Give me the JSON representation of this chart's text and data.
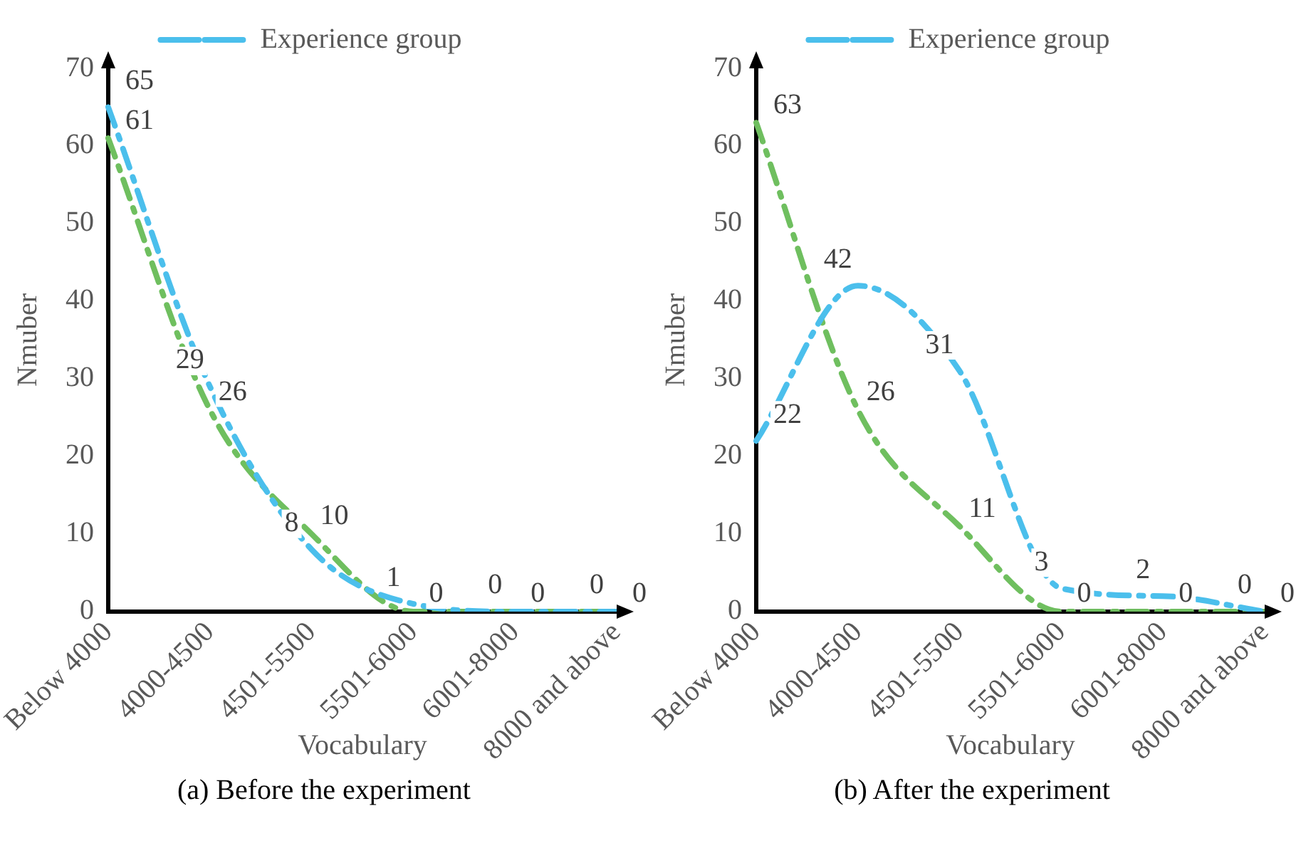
{
  "chart_data": [
    {
      "type": "line",
      "title": "(a) Before the experiment",
      "xlabel": "Vocabulary",
      "ylabel": "Nmuber",
      "categories": [
        "Below 4000",
        "4000-4500",
        "4501-5500",
        "5501-6000",
        "6001-8000",
        "8000 and above"
      ],
      "ylim": [
        0,
        70
      ],
      "yticks": [
        0,
        10,
        20,
        30,
        40,
        50,
        60,
        70
      ],
      "grid": false,
      "legend": "top",
      "data_labels": true,
      "marker": "none",
      "series": [
        {
          "name": "Experience group",
          "color": "#4bbfec",
          "line_style": "dashed",
          "values": [
            65,
            29,
            8,
            1,
            0,
            0
          ]
        },
        {
          "color": "#6fbf5f",
          "line_style": "dashed",
          "values": [
            61,
            26,
            10,
            0,
            0,
            0
          ]
        }
      ]
    },
    {
      "type": "line",
      "title": "(b) After the experiment",
      "xlabel": "Vocabulary",
      "ylabel": "Nmuber",
      "categories": [
        "Below 4000",
        "4000-4500",
        "4501-5500",
        "5501-6000",
        "6001-8000",
        "8000 and above"
      ],
      "ylim": [
        0,
        70
      ],
      "yticks": [
        0,
        10,
        20,
        30,
        40,
        50,
        60,
        70
      ],
      "grid": false,
      "legend": "top",
      "data_labels": true,
      "marker": "none",
      "series": [
        {
          "name": "Experience group",
          "color": "#4bbfec",
          "line_style": "dashed",
          "values": [
            22,
            42,
            31,
            3,
            2,
            0
          ]
        },
        {
          "color": "#6fbf5f",
          "line_style": "dashed",
          "values": [
            63,
            26,
            11,
            0,
            0,
            0
          ]
        }
      ]
    }
  ]
}
